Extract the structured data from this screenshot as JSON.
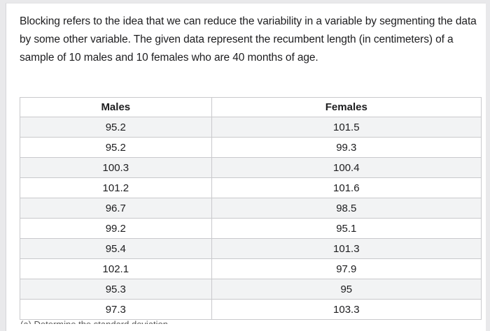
{
  "problem": {
    "intro_text": "Blocking refers to the idea that we can reduce the variability in a variable by segmenting the data by some other variable. The given data represent the recumbent length (in centimeters) of a sample of 10 males and 10 females who are 40 months of age."
  },
  "table": {
    "headers": [
      "Males",
      "Females"
    ],
    "rows": [
      [
        "95.2",
        "101.5"
      ],
      [
        "95.2",
        "99.3"
      ],
      [
        "100.3",
        "100.4"
      ],
      [
        "101.2",
        "101.6"
      ],
      [
        "96.7",
        "98.5"
      ],
      [
        "99.2",
        "95.1"
      ],
      [
        "95.4",
        "101.3"
      ],
      [
        "102.1",
        "97.9"
      ],
      [
        "95.3",
        "95"
      ],
      [
        "97.3",
        "103.3"
      ]
    ]
  },
  "cutoff_text": "(a) Determine the standard deviation"
}
